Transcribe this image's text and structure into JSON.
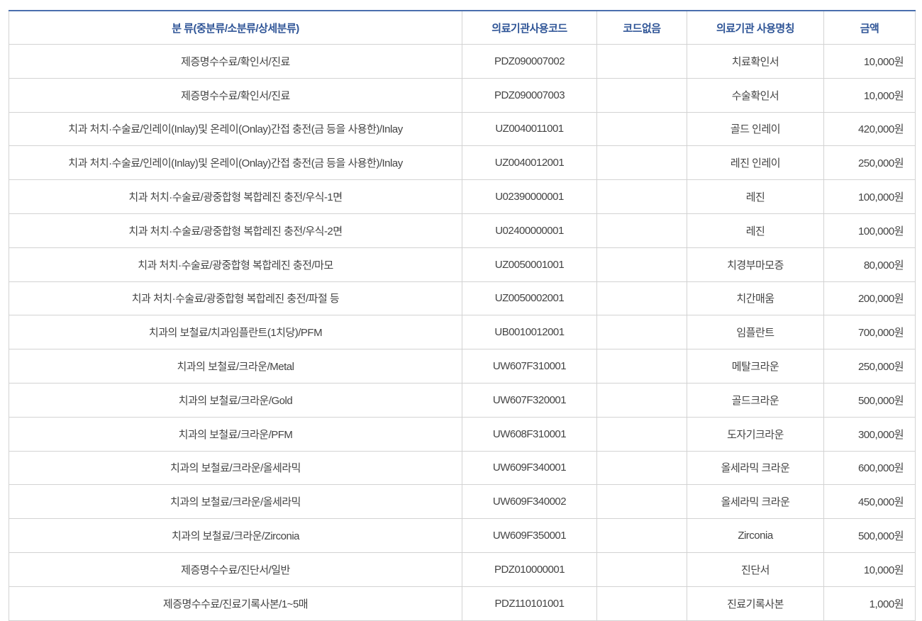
{
  "colors": {
    "header_text": "#2f5597",
    "top_border": "#4a6fae",
    "grid": "#d3d3d3",
    "body_text": "#444444"
  },
  "headers": [
    "분 류(중분류/소분류/상세분류)",
    "의료기관사용코드",
    "코드없음",
    "의료기관 사용명칭",
    "금액"
  ],
  "rows": [
    {
      "category": "제증명수수료/확인서/진료",
      "code": "PDZ090007002",
      "nocode": "",
      "name": "치료확인서",
      "amount": "10,000원"
    },
    {
      "category": "제증명수수료/확인서/진료",
      "code": "PDZ090007003",
      "nocode": "",
      "name": "수술확인서",
      "amount": "10,000원"
    },
    {
      "category": "치과 처치·수술료/인레이(Inlay)및 온레이(Onlay)간접 충전(금 등을 사용한)/Inlay",
      "code": "UZ0040011001",
      "nocode": "",
      "name": "골드 인레이",
      "amount": "420,000원"
    },
    {
      "category": "치과 처치·수술료/인레이(Inlay)및 온레이(Onlay)간접 충전(금 등을 사용한)/Inlay",
      "code": "UZ0040012001",
      "nocode": "",
      "name": "레진 인레이",
      "amount": "250,000원"
    },
    {
      "category": "치과 처치·수술료/광중합형 복합레진 충전/우식-1면",
      "code": "U02390000001",
      "nocode": "",
      "name": "레진",
      "amount": "100,000원"
    },
    {
      "category": "치과 처치·수술료/광중합형 복합레진 충전/우식-2면",
      "code": "U02400000001",
      "nocode": "",
      "name": "레진",
      "amount": "100,000원"
    },
    {
      "category": "치과 처치·수술료/광중합형 복합레진 충전/마모",
      "code": "UZ0050001001",
      "nocode": "",
      "name": "치경부마모증",
      "amount": "80,000원"
    },
    {
      "category": "치과 처치·수술료/광중합형 복합레진 충전/파절 등",
      "code": "UZ0050002001",
      "nocode": "",
      "name": "치간매움",
      "amount": "200,000원"
    },
    {
      "category": "치과의 보철료/치과임플란트(1치당)/PFM",
      "code": "UB0010012001",
      "nocode": "",
      "name": "임플란트",
      "amount": "700,000원"
    },
    {
      "category": "치과의 보철료/크라운/Metal",
      "code": "UW607F310001",
      "nocode": "",
      "name": "메탈크라운",
      "amount": "250,000원"
    },
    {
      "category": "치과의 보철료/크라운/Gold",
      "code": "UW607F320001",
      "nocode": "",
      "name": "골드크라운",
      "amount": "500,000원"
    },
    {
      "category": "치과의 보철료/크라운/PFM",
      "code": "UW608F310001",
      "nocode": "",
      "name": "도자기크라운",
      "amount": "300,000원"
    },
    {
      "category": "치과의 보철료/크라운/올세라믹",
      "code": "UW609F340001",
      "nocode": "",
      "name": "올세라믹 크라운",
      "amount": "600,000원"
    },
    {
      "category": "치과의 보철료/크라운/올세라믹",
      "code": "UW609F340002",
      "nocode": "",
      "name": "올세라믹 크라운",
      "amount": "450,000원"
    },
    {
      "category": "치과의 보철료/크라운/Zirconia",
      "code": "UW609F350001",
      "nocode": "",
      "name": "Zirconia",
      "amount": "500,000원"
    },
    {
      "category": "제증명수수료/진단서/일반",
      "code": "PDZ010000001",
      "nocode": "",
      "name": "진단서",
      "amount": "10,000원"
    },
    {
      "category": "제증명수수료/진료기록사본/1~5매",
      "code": "PDZ110101001",
      "nocode": "",
      "name": "진료기록사본",
      "amount": "1,000원"
    }
  ]
}
